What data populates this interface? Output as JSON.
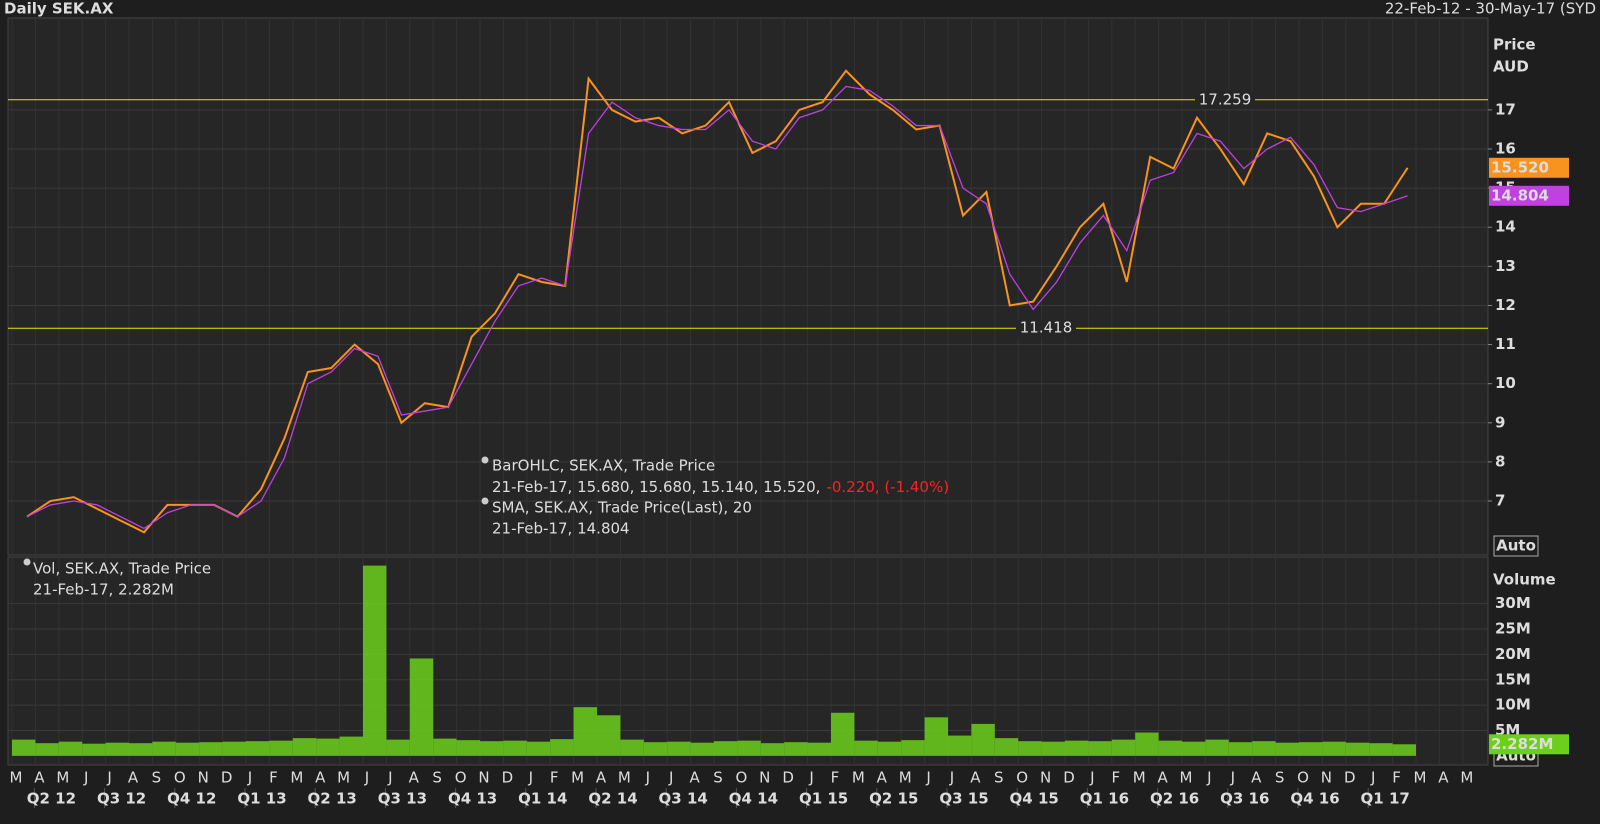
{
  "header": {
    "title": "Daily SEK.AX",
    "range": "22-Feb-12 - 30-May-17 (SYD"
  },
  "chart_data": [
    {
      "type": "line",
      "axis_title": [
        "Price",
        "AUD"
      ],
      "series": [
        {
          "name": "BarOHLC, SEK.AX, Trade Price",
          "color": "#f7931e",
          "values": [
            6.6,
            7.0,
            7.1,
            6.8,
            6.5,
            6.2,
            6.9,
            6.9,
            6.9,
            6.6,
            7.3,
            8.6,
            10.3,
            10.4,
            11.0,
            10.5,
            9.0,
            9.5,
            9.4,
            11.2,
            11.8,
            12.8,
            12.6,
            12.5,
            17.8,
            17.0,
            16.7,
            16.8,
            16.4,
            16.6,
            17.2,
            15.9,
            16.2,
            17.0,
            17.2,
            18.0,
            17.4,
            17.0,
            16.5,
            16.6,
            14.3,
            14.9,
            12.0,
            12.1,
            13.0,
            14.0,
            14.6,
            12.6,
            15.8,
            15.5,
            16.8,
            16.0,
            15.1,
            16.4,
            16.2,
            15.3,
            14.0,
            14.6,
            14.6,
            15.52,
            null,
            null,
            null
          ]
        },
        {
          "name": "SMA, SEK.AX, Trade Price(Last),  20",
          "color": "#c040e0",
          "values": [
            6.6,
            6.9,
            7.0,
            6.9,
            6.6,
            6.3,
            6.7,
            6.9,
            6.9,
            6.6,
            7.0,
            8.1,
            10.0,
            10.3,
            10.9,
            10.7,
            9.2,
            9.3,
            9.4,
            10.5,
            11.6,
            12.5,
            12.7,
            12.5,
            16.4,
            17.2,
            16.8,
            16.6,
            16.5,
            16.5,
            17.0,
            16.2,
            16.0,
            16.8,
            17.0,
            17.6,
            17.5,
            17.1,
            16.6,
            16.6,
            15.0,
            14.6,
            12.8,
            11.9,
            12.6,
            13.6,
            14.3,
            13.4,
            15.2,
            15.4,
            16.4,
            16.2,
            15.5,
            16.0,
            16.3,
            15.6,
            14.5,
            14.4,
            14.6,
            14.804,
            null,
            null,
            null
          ]
        }
      ],
      "legend_details": [
        "21-Feb-17, 15.680, 15.680, 15.140, 15.520,",
        "-0.220, (-1.40%)",
        "21-Feb-17, 14.804"
      ],
      "hlines": [
        {
          "value": 17.259,
          "label": "17.259"
        },
        {
          "value": 11.418,
          "label": "11.418"
        }
      ],
      "markers": [
        {
          "value": 15.52,
          "label": "15.520",
          "color": "#f7931e"
        },
        {
          "value": 14.804,
          "label": "14.804",
          "color": "#c040e0"
        }
      ],
      "scale_button": "Auto",
      "ylim": [
        5.62,
        19.35
      ],
      "yticks": [
        7,
        8,
        9,
        10,
        11,
        12,
        13,
        14,
        15,
        16,
        17
      ],
      "grid": true
    },
    {
      "type": "bar",
      "axis_title": "Volume",
      "color": "#6ccf1c",
      "name": "Vol, SEK.AX, Trade Price",
      "detail": "21-Feb-17, 2.282M",
      "categories": [
        "M",
        "A",
        "M",
        "J",
        "J",
        "A",
        "S",
        "O",
        "N",
        "D",
        "J",
        "F",
        "M",
        "A",
        "M",
        "J",
        "J",
        "A",
        "S",
        "O",
        "N",
        "D",
        "J",
        "F",
        "M",
        "A",
        "M",
        "J",
        "J",
        "A",
        "S",
        "O",
        "N",
        "D",
        "J",
        "F",
        "M",
        "A",
        "M",
        "J",
        "J",
        "A",
        "S",
        "O",
        "N",
        "D",
        "J",
        "F",
        "M",
        "A",
        "M",
        "J",
        "J",
        "A",
        "S",
        "O",
        "N",
        "D",
        "J",
        "F",
        "M",
        "A",
        "M"
      ],
      "quarters": [
        "Q2 12",
        "Q3 12",
        "Q4 12",
        "Q1 13",
        "Q2 13",
        "Q3 13",
        "Q4 13",
        "Q1 14",
        "Q2 14",
        "Q3 14",
        "Q4 14",
        "Q1 15",
        "Q2 15",
        "Q3 15",
        "Q4 15",
        "Q1 16",
        "Q2 16",
        "Q3 16",
        "Q4 16",
        "Q1 17"
      ],
      "values": [
        3.2,
        2.5,
        2.8,
        2.4,
        2.6,
        2.5,
        2.8,
        2.6,
        2.7,
        2.8,
        2.9,
        3.0,
        3.5,
        3.4,
        3.8,
        37.5,
        3.2,
        19.2,
        3.4,
        3.1,
        2.9,
        3.0,
        2.8,
        3.3,
        9.6,
        8.0,
        3.2,
        2.7,
        2.8,
        2.6,
        2.9,
        3.0,
        2.5,
        2.7,
        2.6,
        8.5,
        3.0,
        2.8,
        3.1,
        7.6,
        4.0,
        6.3,
        3.5,
        2.9,
        2.8,
        3.0,
        2.9,
        3.2,
        4.6,
        3.0,
        2.8,
        3.2,
        2.7,
        2.9,
        2.6,
        2.7,
        2.8,
        2.6,
        2.5,
        2.282,
        null,
        null,
        null
      ],
      "last_marker": {
        "value": 2.282,
        "label": "2.282M"
      },
      "scale_button": "Auto",
      "ylim": [
        -1.8,
        39.2
      ],
      "yticks": [
        {
          "value": 5,
          "label": "5M"
        },
        {
          "value": 10,
          "label": "10M"
        },
        {
          "value": 15,
          "label": "15M"
        },
        {
          "value": 20,
          "label": "20M"
        },
        {
          "value": 25,
          "label": "25M"
        },
        {
          "value": 30,
          "label": "30M"
        }
      ]
    }
  ]
}
